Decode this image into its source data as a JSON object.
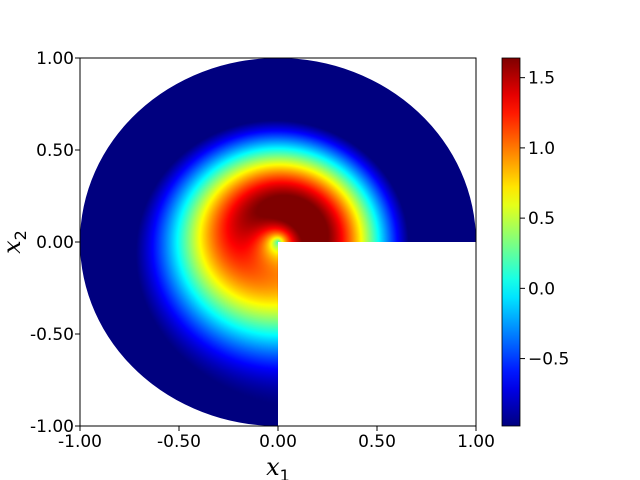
{
  "chart_data": {
    "type": "heatmap",
    "title": "",
    "xlabel": {
      "base": "x",
      "sub": "1"
    },
    "ylabel": {
      "base": "x",
      "sub": "2"
    },
    "xlim": [
      -1.0,
      1.0
    ],
    "ylim": [
      -1.0,
      1.0
    ],
    "xticks": [
      -1.0,
      -0.5,
      0.0,
      0.5,
      1.0
    ],
    "yticks": [
      -1.0,
      -0.5,
      0.0,
      0.5,
      1.0
    ],
    "xtick_labels": [
      "-1.00",
      "-0.50",
      "0.00",
      "0.50",
      "1.00"
    ],
    "ytick_labels": [
      "-1.00",
      "-0.50",
      "0.00",
      "0.50",
      "1.00"
    ],
    "domain": "unit disk with the lower-right quadrant (x1 > 0, x2 < 0) removed",
    "field_description": "radially varying field on the L-shaped disk domain (approx. sin-like profile in radius and angle)",
    "colormap": "jet",
    "colorbar": {
      "vmin": -0.98,
      "vmax": 1.64,
      "ticks": [
        -0.5,
        0.0,
        0.5,
        1.0,
        1.5
      ],
      "tick_labels": [
        "−0.5",
        "0.0",
        "0.5",
        "1.0",
        "1.5"
      ]
    },
    "grid": false,
    "legend": "none"
  }
}
